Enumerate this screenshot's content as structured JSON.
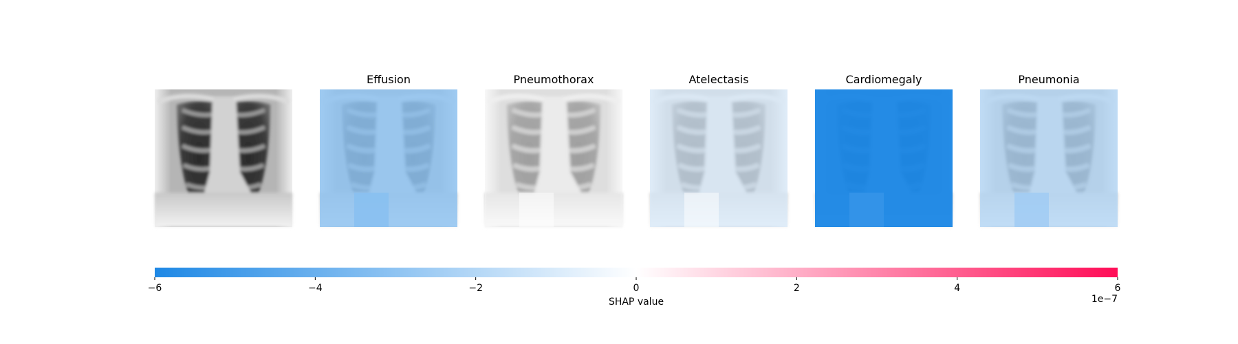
{
  "chart_data": {
    "type": "heatmap",
    "panels": [
      {
        "title": "",
        "kind": "input-image",
        "overlay_value": null,
        "patch_value": null
      },
      {
        "title": "Effusion",
        "kind": "shap-map",
        "overlay_value": -3e-07,
        "patch_value": -3.2e-07
      },
      {
        "title": "Pneumothorax",
        "kind": "shap-map",
        "overlay_value": 0.0,
        "patch_value": 0.0
      },
      {
        "title": "Atelectasis",
        "kind": "shap-map",
        "overlay_value": -1e-07,
        "patch_value": 0.0
      },
      {
        "title": "Cardiomegaly",
        "kind": "shap-map",
        "overlay_value": -6e-07,
        "patch_value": -5.4e-07
      },
      {
        "title": "Pneumonia",
        "kind": "shap-map",
        "overlay_value": -2e-07,
        "patch_value": -2.6e-07
      }
    ],
    "colorbar": {
      "label": "SHAP value",
      "range": [
        -6,
        6
      ],
      "ticks": [
        -6,
        -4,
        -2,
        0,
        2,
        4,
        6
      ],
      "tick_labels": [
        "−6",
        "−4",
        "−2",
        "0",
        "2",
        "4",
        "6"
      ],
      "scale_label": "1e−7",
      "scale_factor": 1e-07,
      "color_negative": "#1e88e5",
      "color_zero": "#ffffff",
      "color_positive": "#ff0d57"
    }
  }
}
